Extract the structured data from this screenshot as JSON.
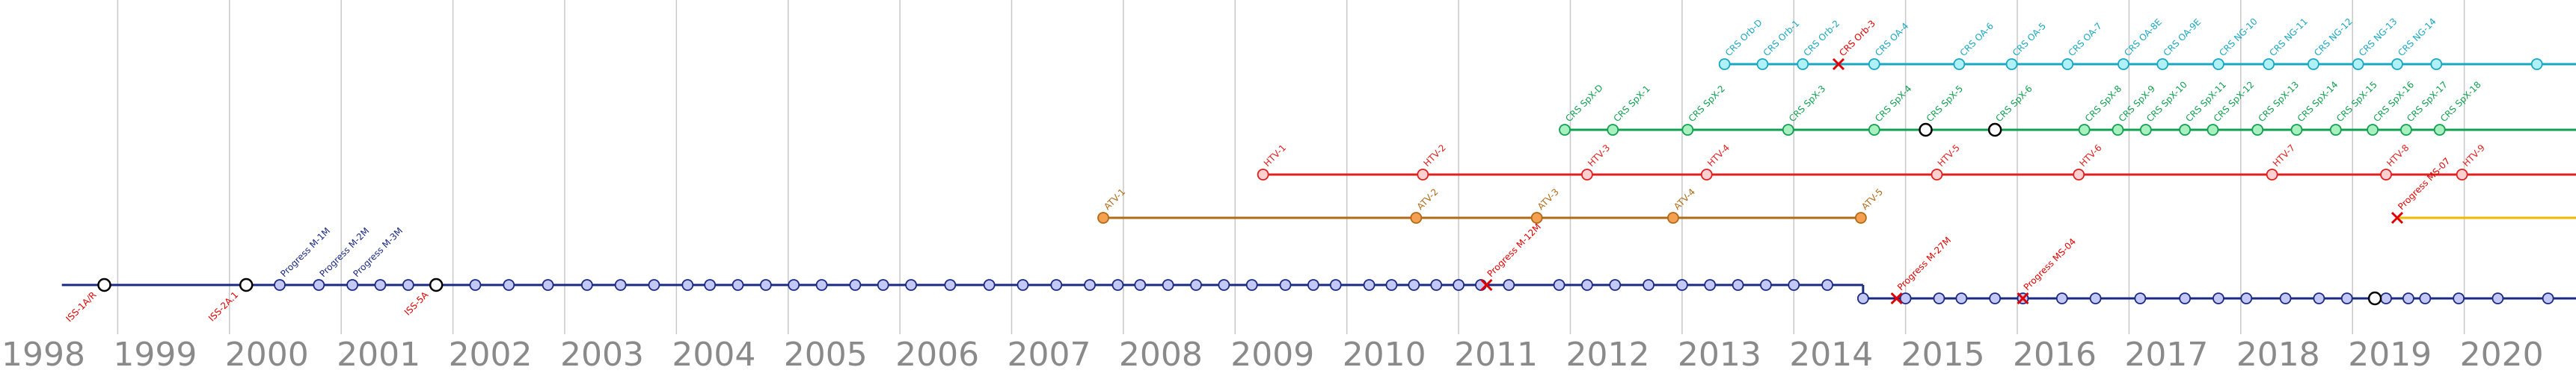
{
  "timeline": {
    "year_start": 1998,
    "year_end": 2021,
    "year_labels": [
      "1998",
      "1999",
      "2000",
      "2001",
      "2002",
      "2003",
      "2004",
      "2005",
      "2006",
      "2007",
      "2008",
      "2009",
      "2010",
      "2011",
      "2012",
      "2013",
      "2014",
      "2015",
      "2016",
      "2017",
      "2018",
      "2019",
      "2020"
    ]
  },
  "colors": {
    "iss": "#1a2a80",
    "iss_node_fill": "#c4c8f7",
    "htv": "#b06a18",
    "htv_node_fill": "#f4a050",
    "dragon": "#e02020",
    "dragon_node_fill": "#ffd0d0",
    "cygnus": "#10a050",
    "cygnus_node_fill": "#a8f0c0",
    "crs1": "#1aa8c0",
    "crs1_node_fill": "#b0f0f8",
    "crs2": "#f0b800",
    "failure": "#e00000",
    "milestone_fill": "#ffffff",
    "grid": "#c8c8c8",
    "year_text": "#8a8a8a"
  },
  "programs": [
    {
      "id": "iss-assembly",
      "color_key": "iss",
      "start": 1998.5,
      "end": 2014.62,
      "milestones": [
        1998.88,
        2000.15,
        2001.85
      ],
      "nodes": [
        2000.45,
        2000.8,
        2001.1,
        2001.35,
        2001.6,
        2002.2,
        2002.5,
        2002.85,
        2003.2,
        2003.5,
        2003.8,
        2004.1,
        2004.3,
        2004.55,
        2004.8,
        2005.05,
        2005.3,
        2005.6,
        2005.85,
        2006.1,
        2006.45,
        2006.8,
        2007.1,
        2007.4,
        2007.7,
        2007.95,
        2008.15,
        2008.4,
        2008.65,
        2008.9,
        2009.15,
        2009.45,
        2009.7,
        2009.9,
        2010.2,
        2010.4,
        2010.6,
        2010.8,
        2011.0,
        2011.2,
        2011.45,
        2011.9,
        2012.15,
        2012.4,
        2012.7,
        2013.0,
        2013.25,
        2013.5,
        2013.75,
        2014.0,
        2014.3
      ],
      "failures": [
        2011.25
      ],
      "failure_labels": [
        "Progress M-12M"
      ],
      "labels": [
        "Progress M-1M",
        "Progress M-2M",
        "Progress M-3M"
      ]
    },
    {
      "id": "iss-operations",
      "color_key": "iss",
      "start": 2014.62,
      "end": 2021.0,
      "milestones": [
        2019.2
      ],
      "nodes": [
        2014.62,
        2015.0,
        2015.3,
        2015.5,
        2015.8,
        2016.05,
        2016.4,
        2016.7,
        2017.1,
        2017.5,
        2017.8,
        2018.05,
        2018.4,
        2018.7,
        2018.95,
        2019.3,
        2019.5,
        2019.65,
        2019.95,
        2020.3,
        2020.75
      ],
      "failures": [
        2014.92,
        2016.05
      ],
      "failure_labels": [
        "Progress M-27M",
        "Progress MS-04"
      ],
      "labels": []
    },
    {
      "id": "htv",
      "color_key": "htv",
      "start": 2007.82,
      "end": 2014.62,
      "milestones": [],
      "nodes": [
        2007.82,
        2010.62,
        2011.7,
        2012.92,
        2014.6
      ],
      "failures": [],
      "failure_labels": [],
      "labels": [
        "ATV-1",
        "ATV-2",
        "ATV-3",
        "ATV-4",
        "ATV-5"
      ]
    },
    {
      "id": "dragon",
      "color_key": "dragon",
      "start": 2009.25,
      "end": 2021.0,
      "milestones": [],
      "nodes": [
        2009.25,
        2010.68,
        2012.15,
        2013.22,
        2015.28,
        2016.55,
        2018.28,
        2019.3,
        2019.98
      ],
      "failures": [],
      "failure_labels": [],
      "labels": [
        "HTV-1",
        "HTV-2",
        "HTV-3",
        "HTV-4",
        "HTV-5",
        "HTV-6",
        "HTV-7",
        "HTV-8",
        "HTV-9"
      ]
    },
    {
      "id": "cygnus",
      "color_key": "cygnus",
      "start": 2011.95,
      "end": 2021.0,
      "milestones": [
        2015.18,
        2015.8
      ],
      "nodes": [
        2011.95,
        2012.38,
        2013.05,
        2013.95,
        2014.72,
        2015.18,
        2015.8,
        2016.6,
        2016.9,
        2017.15,
        2017.5,
        2017.75,
        2018.15,
        2018.5,
        2018.85,
        2019.18,
        2019.48,
        2019.78
      ],
      "failures": [],
      "failure_labels": [],
      "labels": [
        "CRS SpX-D",
        "CRS SpX-1",
        "CRS SpX-2",
        "CRS SpX-3",
        "CRS SpX-4",
        "CRS SpX-5",
        "CRS SpX-6",
        "CRS SpX-8",
        "CRS SpX-9",
        "CRS SpX-10",
        "CRS SpX-11",
        "CRS SpX-12",
        "CRS SpX-13",
        "CRS SpX-14",
        "CRS SpX-15",
        "CRS SpX-16",
        "CRS SpX-17",
        "CRS SpX-18"
      ]
    },
    {
      "id": "crs1",
      "color_key": "crs1",
      "start": 2013.38,
      "end": 2021.0,
      "milestones": [],
      "nodes": [
        2013.38,
        2013.72,
        2014.08,
        2014.72,
        2015.48,
        2015.95,
        2016.45,
        2016.95,
        2017.3,
        2017.8,
        2018.25,
        2018.65,
        2019.05,
        2019.4,
        2019.75,
        2020.65
      ],
      "failures": [
        2014.4
      ],
      "failure_labels": [
        "CRS Orb-3"
      ],
      "labels": [
        "CRS Orb-D",
        "CRS Orb-1",
        "CRS Orb-2",
        "CRS OA-4",
        "CRS OA-6",
        "CRS OA-5",
        "CRS OA-7",
        "CRS OA-8E",
        "CRS OA-9E",
        "CRS NG-10",
        "CRS NG-11",
        "CRS NG-12",
        "CRS NG-13",
        "CRS NG-14"
      ]
    },
    {
      "id": "crs2",
      "color_key": "crs2",
      "start": 2019.4,
      "end": 2021.0,
      "milestones": [],
      "nodes": [],
      "failures": [
        2019.4
      ],
      "failure_labels": [
        "Progress MS-07"
      ],
      "labels": []
    }
  ],
  "iss_left_labels": [
    "ISS-1A/R",
    "ISS-2A.1",
    "ISS-5A"
  ]
}
